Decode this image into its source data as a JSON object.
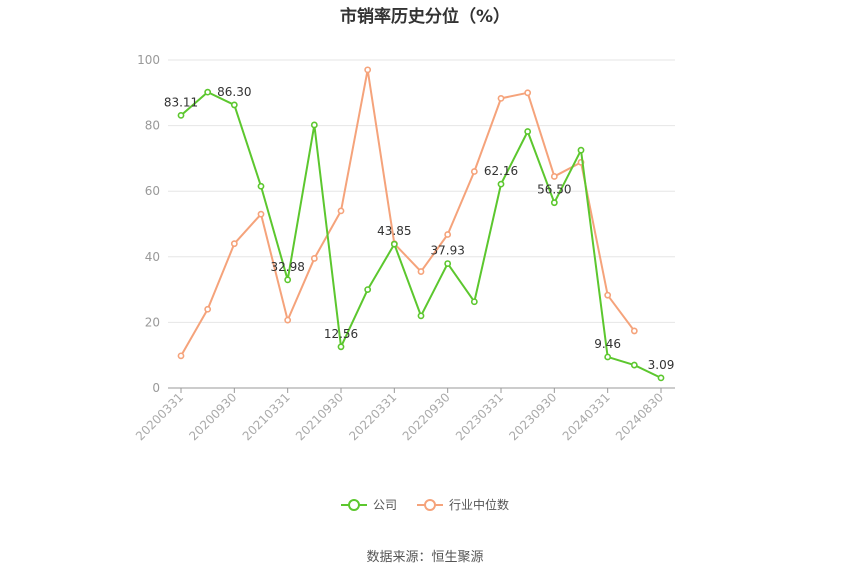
{
  "chart_data": {
    "type": "line",
    "title": "市销率历史分位（%）",
    "xlabel": "",
    "ylabel": "",
    "ylim": [
      0,
      100
    ],
    "yticks": [
      0,
      20,
      40,
      60,
      80,
      100
    ],
    "grid": true,
    "legend_position": "bottom",
    "x": [
      "20200331",
      "20200630",
      "20200930",
      "20201231",
      "20210331",
      "20210630",
      "20210930",
      "20211231",
      "20220331",
      "20220630",
      "20220930",
      "20221231",
      "20230331",
      "20230630",
      "20230930",
      "20231231",
      "20240331",
      "20240630",
      "20240830"
    ],
    "x_tick_labels": [
      "20200331",
      "20200930",
      "20210331",
      "20210930",
      "20220331",
      "20220930",
      "20230331",
      "20230930",
      "20240331",
      "20240830"
    ],
    "x_tick_indices": [
      0,
      2,
      4,
      6,
      8,
      10,
      12,
      14,
      16,
      18
    ],
    "series": [
      {
        "name": "公司",
        "color": "#5cc72e",
        "values": [
          83.11,
          90.2,
          86.3,
          61.5,
          32.98,
          80.2,
          12.56,
          30.0,
          43.85,
          22.0,
          37.93,
          26.3,
          62.16,
          78.2,
          56.5,
          72.5,
          9.46,
          7.0,
          3.09
        ],
        "labels": {
          "0": "83.11",
          "2": "86.30",
          "4": "32.98",
          "6": "12.56",
          "8": "43.85",
          "10": "37.93",
          "12": "62.16",
          "14": "56.50",
          "16": "9.46",
          "18": "3.09"
        }
      },
      {
        "name": "行业中位数",
        "color": "#f5a37b",
        "values": [
          9.8,
          24.0,
          44.0,
          53.0,
          20.7,
          39.5,
          54.0,
          97.0,
          44.0,
          35.5,
          46.8,
          66.0,
          88.3,
          90.0,
          64.5,
          68.8,
          28.3,
          17.4,
          null
        ]
      }
    ]
  },
  "source_text": "数据来源：恒生聚源"
}
